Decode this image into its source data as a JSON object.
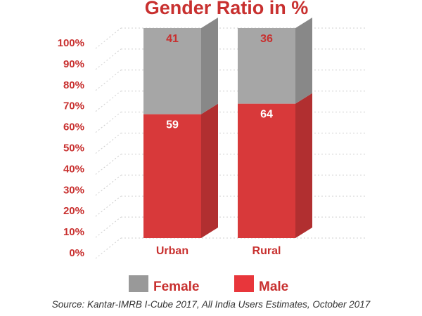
{
  "chart_data": {
    "type": "bar",
    "stacked": true,
    "title": "Gender Ratio in %",
    "categories": [
      "Urban",
      "Rural"
    ],
    "series": [
      {
        "name": "Male",
        "values": [
          59,
          64
        ],
        "color": "#d8393a",
        "label_color": "#ffffff"
      },
      {
        "name": "Female",
        "values": [
          41,
          36
        ],
        "color": "#a6a6a6",
        "label_color": "#c8302f"
      }
    ],
    "yticks": [
      "0%",
      "10%",
      "20%",
      "30%",
      "40%",
      "50%",
      "60%",
      "70%",
      "80%",
      "90%",
      "100%"
    ],
    "ylim": [
      0,
      100
    ],
    "legend": [
      {
        "name": "Female",
        "color": "#999999"
      },
      {
        "name": "Male",
        "color": "#e8363b"
      }
    ],
    "legend_position": "bottom",
    "grid": true
  },
  "source": "Source: Kantar-IMRB I-Cube 2017, All India Users Estimates, October 2017"
}
